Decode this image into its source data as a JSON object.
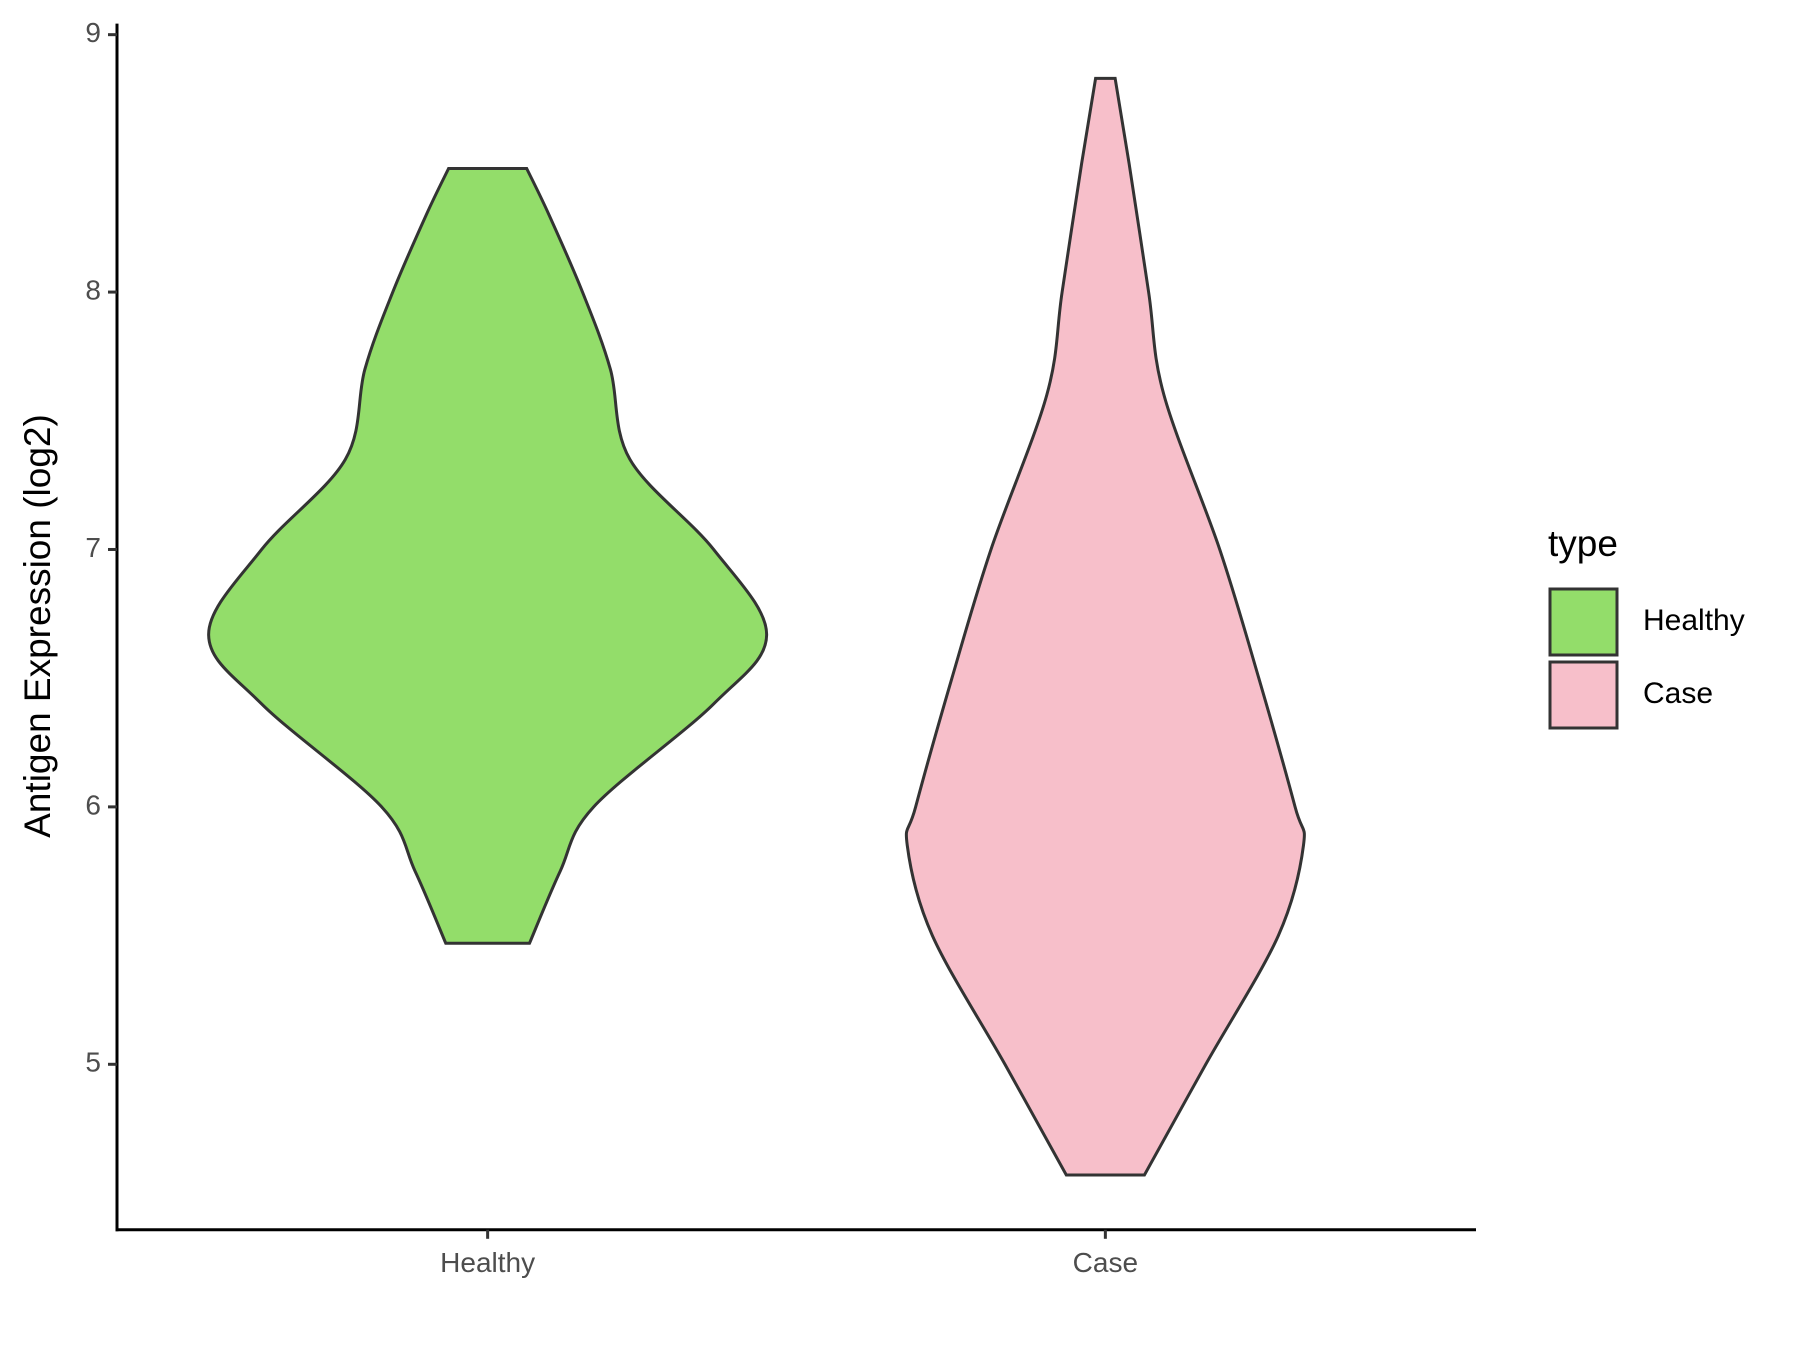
{
  "chart_data": {
    "type": "violin",
    "y_label": "Antigen Expression (log2)",
    "legend_title": "type",
    "categories": [
      "Healthy",
      "Case"
    ],
    "series": [
      {
        "name": "Healthy",
        "color": "#93dd6a",
        "y": [
          8.48,
          8.3,
          8.0,
          7.7,
          7.35,
          7.0,
          6.67,
          6.4,
          6.0,
          5.75,
          5.47
        ],
        "width": [
          0.14,
          0.22,
          0.34,
          0.44,
          0.51,
          0.81,
          1.0,
          0.81,
          0.38,
          0.26,
          0.15
        ]
      },
      {
        "name": "Case",
        "color": "#f7bfca",
        "y": [
          8.83,
          8.5,
          8.0,
          7.6,
          7.0,
          6.5,
          6.0,
          5.85,
          5.5,
          5.0,
          4.57
        ],
        "width": [
          0.035,
          0.085,
          0.155,
          0.21,
          0.41,
          0.55,
          0.68,
          0.71,
          0.62,
          0.36,
          0.14
        ]
      }
    ],
    "ylim": [
      4.357,
      9.043
    ],
    "yticks": [
      5,
      6,
      7,
      8,
      9
    ],
    "grid": false,
    "legend": "right"
  }
}
